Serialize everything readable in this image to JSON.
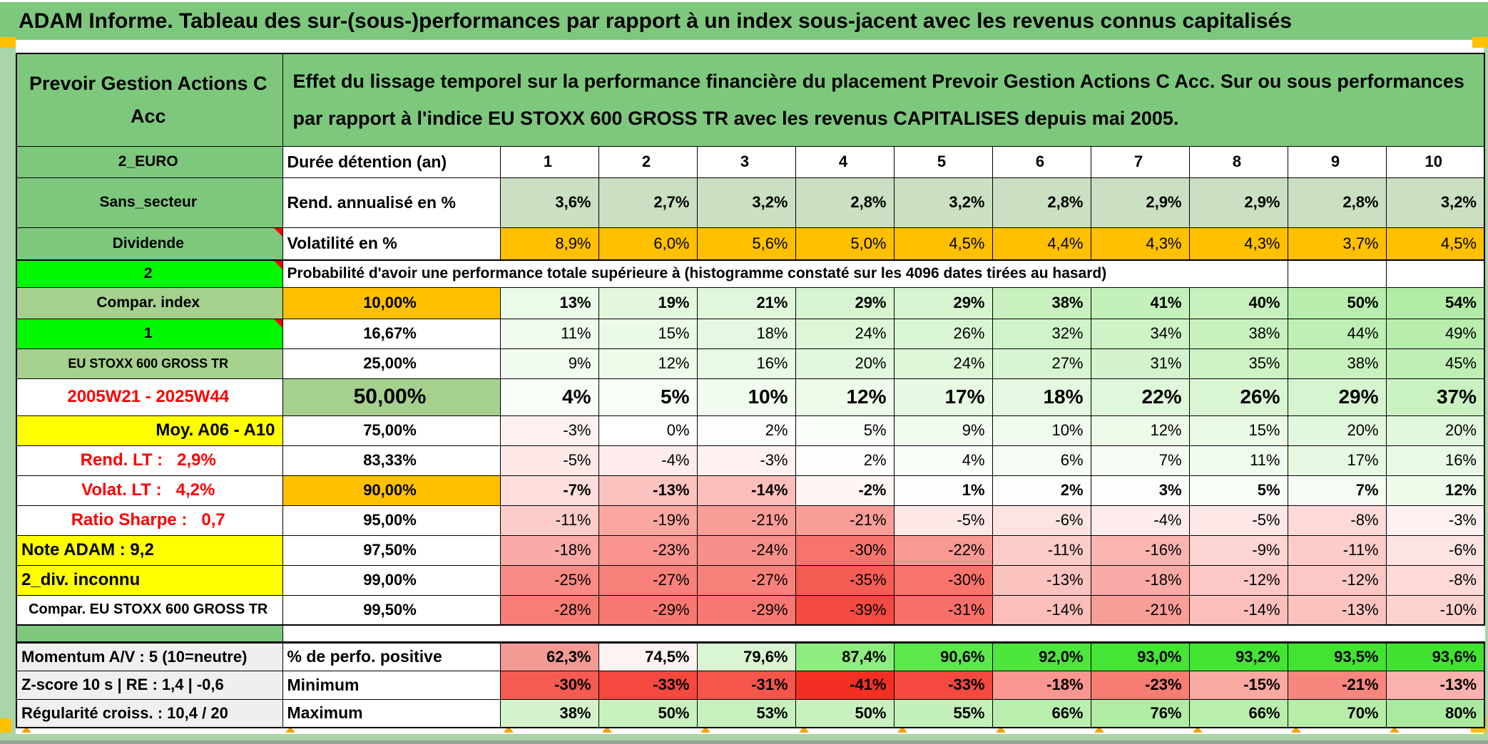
{
  "title": "ADAM Informe. Tableau des sur-(sous-)performances par rapport à un index sous-jacent avec les revenus connus capitalisés",
  "header": {
    "fund": "Prevoir Gestion Actions C Acc",
    "description": "Effet du lissage temporel sur la performance financière du placement Prevoir Gestion Actions C Acc. Sur ou sous performances par rapport à l'indice EU STOXX 600 GROSS TR avec les revenus CAPITALISES depuis mai 2005."
  },
  "columns": [
    "1",
    "2",
    "3",
    "4",
    "5",
    "6",
    "7",
    "8",
    "9",
    "10"
  ],
  "top_rows": [
    {
      "id": "duree",
      "label": "2_EURO",
      "metric": "Durée détention (an)",
      "values": [
        "1",
        "2",
        "3",
        "4",
        "5",
        "6",
        "7",
        "8",
        "9",
        "10"
      ],
      "note": false
    },
    {
      "id": "rend",
      "label": "Sans_secteur",
      "metric": "Rend. annualisé en %",
      "values": [
        "3,6%",
        "2,7%",
        "3,2%",
        "2,8%",
        "3,2%",
        "2,8%",
        "2,9%",
        "2,9%",
        "2,8%",
        "3,2%"
      ],
      "note": false
    },
    {
      "id": "volat",
      "label": "Dividende",
      "metric": "Volatilité en %",
      "values": [
        "8,9%",
        "6,0%",
        "5,6%",
        "5,0%",
        "4,5%",
        "4,4%",
        "4,3%",
        "4,3%",
        "3,7%",
        "4,5%"
      ],
      "note": true
    }
  ],
  "probability_header": {
    "label": "2",
    "text": "Probabilité d'avoir une performance totale supérieure à (histogramme constaté sur les 4096 dates tirées au hasard)",
    "note": true
  },
  "probability_rows": [
    {
      "label": "Compar. index",
      "percentile": "10,00%",
      "values": [
        "13%",
        "19%",
        "21%",
        "29%",
        "29%",
        "38%",
        "41%",
        "40%",
        "50%",
        "54%"
      ],
      "note": false
    },
    {
      "label": "1",
      "percentile": "16,67%",
      "values": [
        "11%",
        "15%",
        "18%",
        "24%",
        "26%",
        "32%",
        "34%",
        "38%",
        "44%",
        "49%"
      ],
      "note": true
    },
    {
      "label": "EU STOXX 600 GROSS TR",
      "percentile": "25,00%",
      "values": [
        "9%",
        "12%",
        "16%",
        "20%",
        "24%",
        "27%",
        "31%",
        "35%",
        "38%",
        "45%"
      ],
      "note": false
    },
    {
      "label": "2005W21 - 2025W44",
      "percentile": "50,00%",
      "values": [
        "4%",
        "5%",
        "10%",
        "12%",
        "17%",
        "18%",
        "22%",
        "26%",
        "29%",
        "37%"
      ],
      "note": false
    },
    {
      "label": "Moy. A06 - A10",
      "percentile": "75,00%",
      "values": [
        "-3%",
        "0%",
        "2%",
        "5%",
        "9%",
        "10%",
        "12%",
        "15%",
        "20%",
        "20%"
      ],
      "note": false
    },
    {
      "label": "Rend. LT :   2,9%",
      "percentile": "83,33%",
      "values": [
        "-5%",
        "-4%",
        "-3%",
        "2%",
        "4%",
        "6%",
        "7%",
        "11%",
        "17%",
        "16%"
      ],
      "note": false
    },
    {
      "label": "Volat. LT :   4,2%",
      "percentile": "90,00%",
      "values": [
        "-7%",
        "-13%",
        "-14%",
        "-2%",
        "1%",
        "2%",
        "3%",
        "5%",
        "7%",
        "12%"
      ],
      "note": false
    },
    {
      "label": "Ratio Sharpe :   0,7",
      "percentile": "95,00%",
      "values": [
        "-11%",
        "-19%",
        "-21%",
        "-21%",
        "-5%",
        "-6%",
        "-4%",
        "-5%",
        "-8%",
        "-3%"
      ],
      "note": false
    },
    {
      "label": "Note ADAM : 9,2",
      "percentile": "97,50%",
      "values": [
        "-18%",
        "-23%",
        "-24%",
        "-30%",
        "-22%",
        "-11%",
        "-16%",
        "-9%",
        "-11%",
        "-6%"
      ],
      "note": false
    },
    {
      "label": "2_div. inconnu",
      "percentile": "99,00%",
      "values": [
        "-25%",
        "-27%",
        "-27%",
        "-35%",
        "-30%",
        "-13%",
        "-18%",
        "-12%",
        "-12%",
        "-8%"
      ],
      "note": false
    },
    {
      "label": "Compar. EU STOXX 600 GROSS TR",
      "percentile": "99,50%",
      "values": [
        "-28%",
        "-29%",
        "-29%",
        "-39%",
        "-31%",
        "-14%",
        "-21%",
        "-14%",
        "-13%",
        "-10%"
      ],
      "note": false
    }
  ],
  "summary_rows": [
    {
      "label": "Momentum A/V : 5 (10=neutre)",
      "metric": "% de perfo. positive",
      "values": [
        "62,3%",
        "74,5%",
        "79,6%",
        "87,4%",
        "90,6%",
        "92,0%",
        "93,0%",
        "93,2%",
        "93,5%",
        "93,6%"
      ],
      "cell_colors": [
        "#f29b94",
        "#fdf3f2",
        "#d9f5d1",
        "#8eec81",
        "#5ce84d",
        "#4ce63c",
        "#45e535",
        "#43e533",
        "#41e431",
        "#40e430"
      ]
    },
    {
      "label": "Z-score 10 s | RE : 1,4 | -0,6",
      "metric": "Minimum",
      "values": [
        "-30%",
        "-33%",
        "-31%",
        "-41%",
        "-33%",
        "-18%",
        "-23%",
        "-15%",
        "-21%",
        "-13%"
      ],
      "cell_colors": [
        "#f55b52",
        "#f54940",
        "#f5554b",
        "#f32f23",
        "#f54940",
        "#f8968f",
        "#f67c74",
        "#f9a8a2",
        "#f7867e",
        "#f9b2ad"
      ]
    },
    {
      "label": "Régularité croiss. : 10,4 / 20",
      "metric": "Maximum",
      "values": [
        "38%",
        "50%",
        "53%",
        "50%",
        "55%",
        "66%",
        "76%",
        "66%",
        "70%",
        "80%"
      ],
      "cell_colors": [
        "#d4f3cc",
        "#c9f1bf",
        "#c6f0bc",
        "#c9f1bf",
        "#c4f0ba",
        "#baeeae",
        "#b0eca3",
        "#baeeae",
        "#b6eda9",
        "#abea9e"
      ]
    }
  ],
  "colors": {
    "title_bar_green": "#7ec87e",
    "header_green": "#7ec87e",
    "label_light_green": "#a6d08e",
    "bright_green": "#00f900",
    "yellow": "#ffff00",
    "orange": "#ffc000",
    "rend_row_green": "#cbdfc2",
    "summary_label_gray": "#efefef",
    "red_text": "#ff0000",
    "positive_heat_max": "#a9e99c",
    "negative_heat_max": "#f4453c",
    "frame_green": "#a9d5a9",
    "marker_orange": "#f0a30a"
  }
}
